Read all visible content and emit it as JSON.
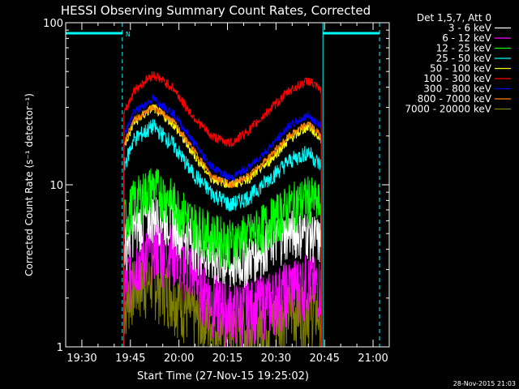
{
  "chart_data": {
    "type": "line",
    "title": "HESSI Observing Summary Count Rates, Corrected",
    "xlabel": "Start Time (27-Nov-15 19:25:02)",
    "ylabel": "Corrected Count Rate (s⁻¹ detector⁻¹)",
    "y_scale": "log",
    "ylim": [
      1,
      100
    ],
    "y_ticks": [
      1,
      10,
      100
    ],
    "xlim_minutes_after_1930": [
      -5,
      95
    ],
    "x_ticks": [
      {
        "label": "19:30",
        "minutes": 0
      },
      {
        "label": "19:45",
        "minutes": 15
      },
      {
        "label": "20:00",
        "minutes": 30
      },
      {
        "label": "20:15",
        "minutes": 45
      },
      {
        "label": "20:30",
        "minutes": 60
      },
      {
        "label": "20:45",
        "minutes": 75
      },
      {
        "label": "21:00",
        "minutes": 90
      }
    ],
    "legend": {
      "title": "Det 1,5,7, Att 0",
      "position": "top-right"
    },
    "series": [
      {
        "name": "3 - 6 keV",
        "color": "#ffffff",
        "t": [
          13,
          16,
          22,
          28,
          34,
          40,
          46,
          52,
          58,
          64,
          70,
          74
        ],
        "y": [
          4.2,
          5.5,
          6.6,
          6.0,
          4.6,
          3.5,
          3.2,
          3.6,
          4.4,
          5.2,
          5.2,
          4.5
        ]
      },
      {
        "name": "6 - 12 keV",
        "color": "#ff00ff",
        "t": [
          13,
          16,
          22,
          28,
          34,
          40,
          46,
          52,
          58,
          64,
          70,
          74
        ],
        "y": [
          2.4,
          3.3,
          4.4,
          4.0,
          3.0,
          2.0,
          1.7,
          1.8,
          2.0,
          2.4,
          2.6,
          2.4
        ]
      },
      {
        "name": "12 - 25 keV",
        "color": "#00ff00",
        "t": [
          13,
          16,
          22,
          28,
          34,
          40,
          46,
          52,
          58,
          64,
          70,
          74
        ],
        "y": [
          6.0,
          8.0,
          10.0,
          8.0,
          6.0,
          5.0,
          4.5,
          5.0,
          6.0,
          7.5,
          8.5,
          7.5
        ]
      },
      {
        "name": "25 - 50 keV",
        "color": "#00ffff",
        "t": [
          13,
          16,
          22,
          28,
          34,
          40,
          46,
          52,
          58,
          64,
          70,
          74
        ],
        "y": [
          13,
          19,
          23,
          18,
          12,
          9,
          7.5,
          8.5,
          11,
          14,
          16,
          13
        ]
      },
      {
        "name": "50 - 100 keV",
        "color": "#ffff00",
        "t": [
          13,
          16,
          22,
          28,
          34,
          40,
          46,
          52,
          58,
          64,
          70,
          74
        ],
        "y": [
          17,
          24,
          30,
          24,
          16,
          11,
          10,
          11,
          14,
          19,
          23,
          19
        ]
      },
      {
        "name": "100 - 300 keV",
        "color": "#ff0000",
        "t": [
          13,
          16,
          22,
          28,
          34,
          40,
          46,
          52,
          58,
          64,
          70,
          74
        ],
        "y": [
          27,
          38,
          48,
          40,
          27,
          20,
          18,
          22,
          29,
          38,
          44,
          38
        ]
      },
      {
        "name": "300 - 800 keV",
        "color": "#0000ff",
        "t": [
          13,
          16,
          22,
          28,
          34,
          40,
          46,
          52,
          58,
          64,
          70,
          74
        ],
        "y": [
          20,
          28,
          34,
          28,
          19,
          13,
          11,
          13,
          17,
          23,
          27,
          23
        ]
      },
      {
        "name": "800 - 7000 keV",
        "color": "#ff8000",
        "t": [
          13,
          16,
          22,
          28,
          34,
          40,
          46,
          52,
          58,
          64,
          70,
          74
        ],
        "y": [
          18,
          25,
          30,
          25,
          17,
          11.5,
          10,
          11.5,
          15,
          20,
          24,
          20
        ]
      },
      {
        "name": "7000 - 20000 keV",
        "color": "#808000",
        "t": [
          13,
          16,
          22,
          28,
          34,
          40,
          46,
          52,
          58,
          64,
          70,
          74
        ],
        "y": [
          1.8,
          2.4,
          2.6,
          2.2,
          1.6,
          1.4,
          1.3,
          1.3,
          1.5,
          1.7,
          1.8,
          1.6
        ]
      }
    ],
    "flags": [
      {
        "label": "N",
        "color": "#00ffff"
      }
    ],
    "footer_timestamp": "28-Nov-2015 21:03"
  }
}
